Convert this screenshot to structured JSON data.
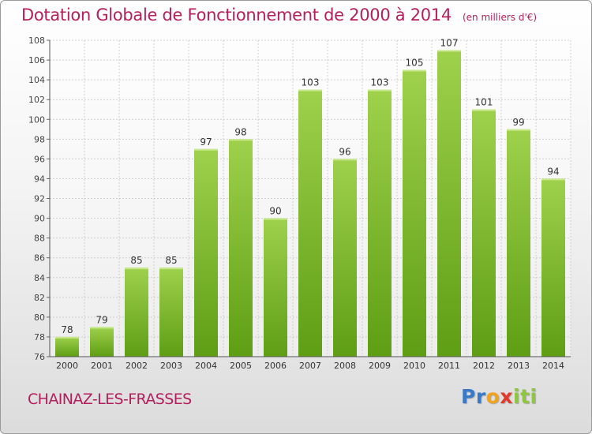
{
  "title": "Dotation Globale de Fonctionnement de 2000 à 2014",
  "unit": "(en milliers d'€)",
  "commune": "CHAINAZ-LES-FRASSES",
  "logo": {
    "letters": [
      "P",
      "r",
      "o",
      "x",
      "i",
      "t",
      "i"
    ],
    "colors": [
      "#3a78c8",
      "#3a78c8",
      "#f2a21b",
      "#e23a2a",
      "#8dc63f",
      "#8dc63f",
      "#8dc63f"
    ]
  },
  "colors": {
    "accent": "#b41e5c",
    "bar_light": "#9fd14c",
    "bar_dark": "#5e9e14"
  },
  "chart_data": {
    "type": "bar",
    "categories": [
      "2000",
      "2001",
      "2002",
      "2003",
      "2004",
      "2005",
      "2006",
      "2007",
      "2008",
      "2009",
      "2010",
      "2011",
      "2012",
      "2013",
      "2014"
    ],
    "values": [
      78,
      79,
      85,
      85,
      97,
      98,
      90,
      103,
      96,
      103,
      105,
      107,
      101,
      99,
      94
    ],
    "ylim": [
      76,
      108
    ],
    "yticks": [
      76,
      78,
      80,
      82,
      84,
      86,
      88,
      90,
      92,
      94,
      96,
      98,
      100,
      102,
      104,
      106,
      108
    ],
    "grid": true,
    "legend": "none"
  }
}
